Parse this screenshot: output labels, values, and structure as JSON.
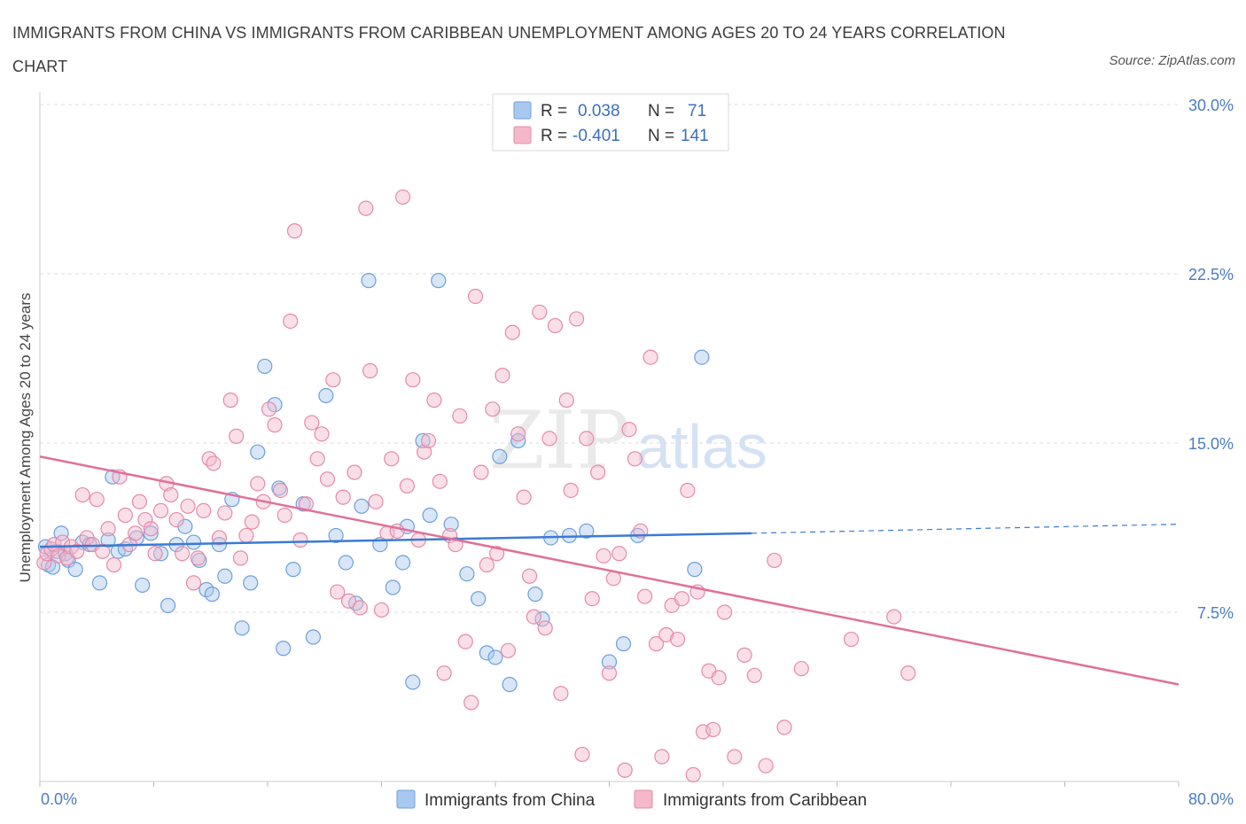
{
  "title": "IMMIGRANTS FROM CHINA VS IMMIGRANTS FROM CARIBBEAN UNEMPLOYMENT AMONG AGES 20 TO 24 YEARS CORRELATION CHART",
  "source": "Source: ZipAtlas.com",
  "watermark": {
    "zip": "ZIP",
    "atlas": "atlas"
  },
  "legend": {
    "r_label": "R =",
    "n_label": "N =",
    "china": {
      "r": "0.038",
      "n": "71"
    },
    "caribbean": {
      "r": "-0.401",
      "n": "141"
    }
  },
  "colors": {
    "china_fill": "#a9c8f0",
    "china_stroke": "#6d9fdc",
    "china_line": "#3a7bd5",
    "caribbean_fill": "#f5b8cb",
    "caribbean_stroke": "#e58aa8",
    "caribbean_line": "#e0709a",
    "grid": "#dddddd",
    "tick_label": "#4a7cc4"
  },
  "chart_data": {
    "type": "scatter",
    "title": "IMMIGRANTS FROM CHINA VS IMMIGRANTS FROM CARIBBEAN UNEMPLOYMENT AMONG AGES 20 TO 24 YEARS CORRELATION CHART",
    "xlabel": "",
    "ylabel": "Unemployment Among Ages 20 to 24 years",
    "xlim": [
      0,
      80
    ],
    "ylim": [
      0,
      30
    ],
    "x_tick_labels": [
      "0.0%",
      "80.0%"
    ],
    "y_ticks": [
      7.5,
      15.0,
      22.5,
      30.0
    ],
    "y_tick_labels": [
      "7.5%",
      "15.0%",
      "22.5%",
      "30.0%"
    ],
    "grid": "horizontal dashed",
    "legend_placement": "top-center and bottom",
    "series": [
      {
        "name": "Immigrants from China",
        "r": 0.038,
        "n": 71,
        "trend": {
          "x0": 0,
          "y0": 10.4,
          "x1": 50,
          "y1": 11.0,
          "dashed_to_x": 80,
          "dashed_to_y": 11.4
        },
        "points": [
          [
            0.4,
            10.4
          ],
          [
            0.6,
            9.6
          ],
          [
            0.9,
            9.5
          ],
          [
            1.2,
            10.2
          ],
          [
            1.5,
            11.0
          ],
          [
            1.8,
            10.1
          ],
          [
            2.0,
            9.8
          ],
          [
            2.5,
            9.4
          ],
          [
            3.0,
            10.6
          ],
          [
            3.5,
            10.5
          ],
          [
            4.2,
            8.8
          ],
          [
            4.8,
            10.7
          ],
          [
            5.1,
            13.5
          ],
          [
            5.5,
            10.2
          ],
          [
            6.0,
            10.3
          ],
          [
            6.8,
            10.8
          ],
          [
            7.2,
            8.7
          ],
          [
            7.8,
            11.0
          ],
          [
            8.5,
            10.1
          ],
          [
            9.0,
            7.8
          ],
          [
            9.6,
            10.5
          ],
          [
            10.2,
            11.3
          ],
          [
            10.8,
            10.6
          ],
          [
            11.2,
            9.8
          ],
          [
            11.7,
            8.5
          ],
          [
            12.1,
            8.3
          ],
          [
            12.6,
            10.5
          ],
          [
            13.0,
            9.1
          ],
          [
            13.5,
            12.5
          ],
          [
            14.2,
            6.8
          ],
          [
            14.8,
            8.8
          ],
          [
            15.3,
            14.6
          ],
          [
            15.8,
            18.4
          ],
          [
            16.5,
            16.7
          ],
          [
            16.8,
            13.0
          ],
          [
            17.1,
            5.9
          ],
          [
            17.8,
            9.4
          ],
          [
            18.5,
            12.3
          ],
          [
            19.2,
            6.4
          ],
          [
            20.1,
            17.1
          ],
          [
            20.8,
            10.9
          ],
          [
            21.5,
            9.7
          ],
          [
            22.2,
            7.9
          ],
          [
            22.6,
            12.2
          ],
          [
            23.1,
            22.2
          ],
          [
            23.9,
            10.5
          ],
          [
            24.8,
            8.6
          ],
          [
            25.5,
            9.7
          ],
          [
            25.8,
            11.3
          ],
          [
            26.2,
            4.4
          ],
          [
            26.9,
            15.1
          ],
          [
            27.4,
            11.8
          ],
          [
            28.0,
            22.2
          ],
          [
            28.9,
            11.4
          ],
          [
            30.0,
            9.2
          ],
          [
            30.8,
            8.1
          ],
          [
            31.4,
            5.7
          ],
          [
            32.0,
            5.5
          ],
          [
            32.3,
            14.4
          ],
          [
            33.0,
            4.3
          ],
          [
            33.6,
            15.1
          ],
          [
            34.8,
            8.3
          ],
          [
            35.3,
            7.2
          ],
          [
            35.9,
            10.8
          ],
          [
            37.2,
            10.9
          ],
          [
            38.4,
            11.1
          ],
          [
            40.0,
            5.3
          ],
          [
            41.0,
            6.1
          ],
          [
            42.0,
            10.9
          ],
          [
            46.0,
            9.4
          ],
          [
            46.5,
            18.8
          ]
        ]
      },
      {
        "name": "Immigrants from Caribbean",
        "r": -0.401,
        "n": 141,
        "trend": {
          "x0": 0,
          "y0": 14.4,
          "x1": 80,
          "y1": 4.3
        },
        "points": [
          [
            0.3,
            9.7
          ],
          [
            0.5,
            10.1
          ],
          [
            0.8,
            10.3
          ],
          [
            1.0,
            10.5
          ],
          [
            1.3,
            10.0
          ],
          [
            1.6,
            10.6
          ],
          [
            1.9,
            9.9
          ],
          [
            2.2,
            10.4
          ],
          [
            2.6,
            10.2
          ],
          [
            3.0,
            12.7
          ],
          [
            3.3,
            10.8
          ],
          [
            3.7,
            10.5
          ],
          [
            4.0,
            12.5
          ],
          [
            4.4,
            10.2
          ],
          [
            4.8,
            11.2
          ],
          [
            5.2,
            9.6
          ],
          [
            5.6,
            13.5
          ],
          [
            6.0,
            11.8
          ],
          [
            6.3,
            10.5
          ],
          [
            6.7,
            11.0
          ],
          [
            7.0,
            12.4
          ],
          [
            7.4,
            11.6
          ],
          [
            7.8,
            11.2
          ],
          [
            8.1,
            10.1
          ],
          [
            8.5,
            12.0
          ],
          [
            8.9,
            13.2
          ],
          [
            9.2,
            12.7
          ],
          [
            9.6,
            11.6
          ],
          [
            10.0,
            10.1
          ],
          [
            10.4,
            12.2
          ],
          [
            10.8,
            8.8
          ],
          [
            11.1,
            9.9
          ],
          [
            11.5,
            12.0
          ],
          [
            11.9,
            14.3
          ],
          [
            12.2,
            14.1
          ],
          [
            12.6,
            10.8
          ],
          [
            13.0,
            11.9
          ],
          [
            13.4,
            16.9
          ],
          [
            13.8,
            15.3
          ],
          [
            14.1,
            9.9
          ],
          [
            14.5,
            10.9
          ],
          [
            14.9,
            11.5
          ],
          [
            15.3,
            13.2
          ],
          [
            15.7,
            12.4
          ],
          [
            16.1,
            16.5
          ],
          [
            16.5,
            15.8
          ],
          [
            16.9,
            12.9
          ],
          [
            17.2,
            11.8
          ],
          [
            17.6,
            20.4
          ],
          [
            17.9,
            24.4
          ],
          [
            18.3,
            10.7
          ],
          [
            18.7,
            12.3
          ],
          [
            19.1,
            15.9
          ],
          [
            19.5,
            14.3
          ],
          [
            19.8,
            15.4
          ],
          [
            20.2,
            13.4
          ],
          [
            20.6,
            17.8
          ],
          [
            20.9,
            8.4
          ],
          [
            21.3,
            12.6
          ],
          [
            21.7,
            8.0
          ],
          [
            22.1,
            13.7
          ],
          [
            22.5,
            7.7
          ],
          [
            22.9,
            25.4
          ],
          [
            23.2,
            18.2
          ],
          [
            23.6,
            12.4
          ],
          [
            24.0,
            7.6
          ],
          [
            24.4,
            11.0
          ],
          [
            24.7,
            14.3
          ],
          [
            25.1,
            11.1
          ],
          [
            25.5,
            25.9
          ],
          [
            25.8,
            13.1
          ],
          [
            26.2,
            17.8
          ],
          [
            26.6,
            10.7
          ],
          [
            27.0,
            14.6
          ],
          [
            27.3,
            15.1
          ],
          [
            27.7,
            16.9
          ],
          [
            28.1,
            13.3
          ],
          [
            28.4,
            4.8
          ],
          [
            28.8,
            10.9
          ],
          [
            29.2,
            10.5
          ],
          [
            29.5,
            16.2
          ],
          [
            29.9,
            6.2
          ],
          [
            30.3,
            3.5
          ],
          [
            30.6,
            21.5
          ],
          [
            31.0,
            13.7
          ],
          [
            31.4,
            9.6
          ],
          [
            31.8,
            16.5
          ],
          [
            32.1,
            10.1
          ],
          [
            32.5,
            18.0
          ],
          [
            32.9,
            5.8
          ],
          [
            33.2,
            19.9
          ],
          [
            33.6,
            15.4
          ],
          [
            34.0,
            12.6
          ],
          [
            34.4,
            9.1
          ],
          [
            34.7,
            7.3
          ],
          [
            35.1,
            20.8
          ],
          [
            35.5,
            6.8
          ],
          [
            35.8,
            15.2
          ],
          [
            36.2,
            20.2
          ],
          [
            36.6,
            3.9
          ],
          [
            37.0,
            16.9
          ],
          [
            37.3,
            12.9
          ],
          [
            37.7,
            20.5
          ],
          [
            38.1,
            1.2
          ],
          [
            38.4,
            15.2
          ],
          [
            38.8,
            8.1
          ],
          [
            39.2,
            13.7
          ],
          [
            39.6,
            10.0
          ],
          [
            40.0,
            4.8
          ],
          [
            40.3,
            9.0
          ],
          [
            40.7,
            10.1
          ],
          [
            41.1,
            0.5
          ],
          [
            41.4,
            15.6
          ],
          [
            41.8,
            14.3
          ],
          [
            42.2,
            11.1
          ],
          [
            42.5,
            8.2
          ],
          [
            42.9,
            18.8
          ],
          [
            43.3,
            6.1
          ],
          [
            43.7,
            1.1
          ],
          [
            44.0,
            6.5
          ],
          [
            44.4,
            7.8
          ],
          [
            44.8,
            6.3
          ],
          [
            45.1,
            8.1
          ],
          [
            45.5,
            12.9
          ],
          [
            45.9,
            0.3
          ],
          [
            46.2,
            8.4
          ],
          [
            46.6,
            2.2
          ],
          [
            47.0,
            4.9
          ],
          [
            47.3,
            2.3
          ],
          [
            47.7,
            4.6
          ],
          [
            48.1,
            7.5
          ],
          [
            48.8,
            1.1
          ],
          [
            49.5,
            5.6
          ],
          [
            50.2,
            4.7
          ],
          [
            51.0,
            0.7
          ],
          [
            51.6,
            9.8
          ],
          [
            52.3,
            2.4
          ],
          [
            53.5,
            5.0
          ],
          [
            57.0,
            6.3
          ],
          [
            60.0,
            7.3
          ],
          [
            61.0,
            4.8
          ]
        ]
      }
    ]
  }
}
